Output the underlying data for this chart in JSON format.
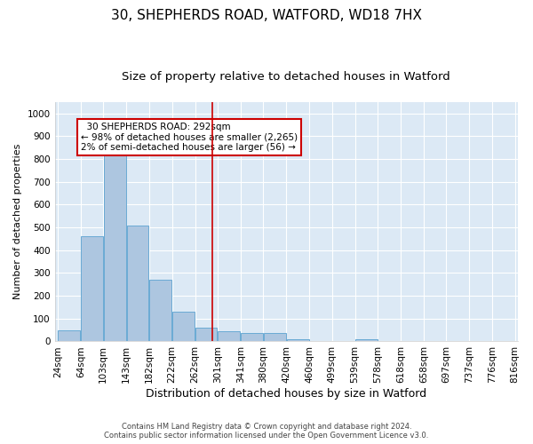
{
  "title1": "30, SHEPHERDS ROAD, WATFORD, WD18 7HX",
  "title2": "Size of property relative to detached houses in Watford",
  "xlabel": "Distribution of detached houses by size in Watford",
  "ylabel": "Number of detached properties",
  "footer1": "Contains HM Land Registry data © Crown copyright and database right 2024.",
  "footer2": "Contains public sector information licensed under the Open Government Licence v3.0.",
  "annotation_line1": "  30 SHEPHERDS ROAD: 292sqm  ",
  "annotation_line2": "← 98% of detached houses are smaller (2,265)",
  "annotation_line3": "2% of semi-detached houses are larger (56) →",
  "vline_x": 292,
  "bar_edges": [
    24,
    64,
    103,
    143,
    182,
    222,
    262,
    301,
    341,
    380,
    420,
    460,
    499,
    539,
    578,
    618,
    658,
    697,
    737,
    776,
    816
  ],
  "bar_heights": [
    50,
    460,
    820,
    510,
    270,
    130,
    60,
    45,
    35,
    35,
    10,
    0,
    0,
    10,
    0,
    0,
    0,
    0,
    0,
    0
  ],
  "bar_color": "#adc6e0",
  "bar_edgecolor": "#6aaad4",
  "vline_color": "#cc0000",
  "background_color": "#dce9f5",
  "fig_background_color": "#ffffff",
  "annotation_box_facecolor": "#ffffff",
  "annotation_box_edgecolor": "#cc0000",
  "ylim": [
    0,
    1050
  ],
  "yticks": [
    0,
    100,
    200,
    300,
    400,
    500,
    600,
    700,
    800,
    900,
    1000
  ],
  "grid_color": "#ffffff",
  "title1_fontsize": 11,
  "title2_fontsize": 9.5,
  "xlabel_fontsize": 9,
  "ylabel_fontsize": 8,
  "tick_fontsize": 7.5,
  "annotation_fontsize": 7.5,
  "footer_fontsize": 6
}
